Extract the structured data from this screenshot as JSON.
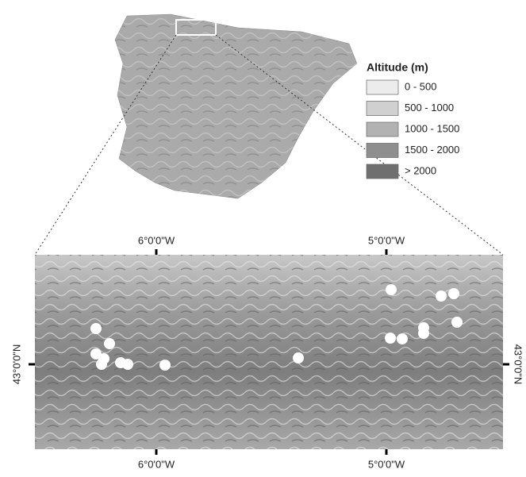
{
  "legend": {
    "title": "Altitude (m)",
    "items": [
      {
        "label": "0 - 500",
        "color": "#ececec"
      },
      {
        "label": "500 - 1000",
        "color": "#d0d0d0"
      },
      {
        "label": "1000 - 1500",
        "color": "#b2b2b2"
      },
      {
        "label": "1500 - 2000",
        "color": "#8e8e8e"
      },
      {
        "label": "> 2000",
        "color": "#6f6f6f"
      }
    ]
  },
  "inset": {
    "top_labels": [
      "6°0'0\"W",
      "5°0'0\"W"
    ],
    "bottom_labels": [
      "6°0'0\"W",
      "5°0'0\"W"
    ],
    "left_label": "43°0'0\"N",
    "right_label": "43°0'0\"N"
  }
}
